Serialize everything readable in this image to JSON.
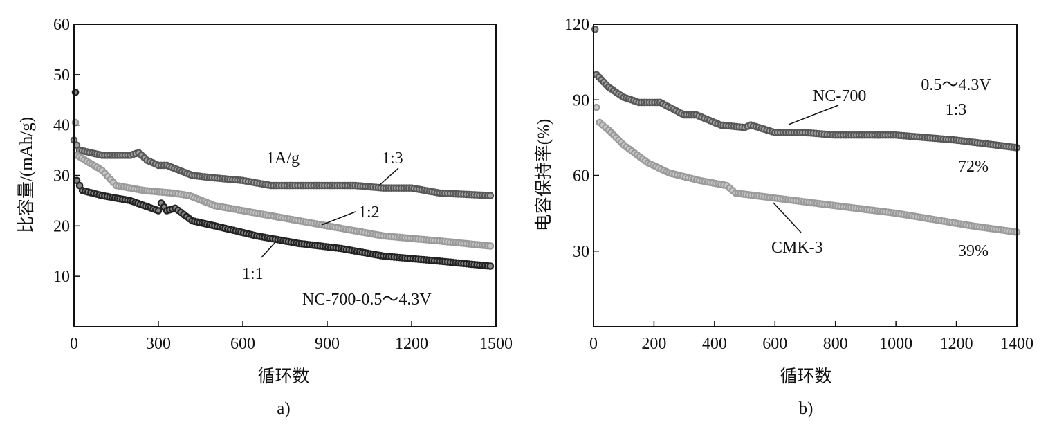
{
  "chart_data": [
    {
      "type": "scatter",
      "panel": "a)",
      "xlabel": "循环数",
      "ylabel": "比容量/(mAh/g)",
      "xlim": [
        0,
        1500
      ],
      "ylim": [
        0,
        60
      ],
      "xticks": [
        0,
        300,
        600,
        900,
        1200,
        1500
      ],
      "yticks": [
        10,
        20,
        30,
        40,
        50,
        60
      ],
      "annotations": {
        "rate": "1A/g",
        "condition": "NC-700-0.5～4.3V"
      },
      "series": [
        {
          "name": "1:3",
          "color": "#575757",
          "x": [
            0,
            20,
            100,
            200,
            230,
            260,
            300,
            330,
            420,
            500,
            600,
            650,
            700,
            900,
            1000,
            1100,
            1200,
            1300,
            1480
          ],
          "y": [
            37,
            35,
            34,
            34,
            34.5,
            33,
            32,
            32,
            30,
            29.5,
            29,
            28.5,
            28,
            28,
            28,
            27.5,
            27.5,
            26.5,
            26
          ]
        },
        {
          "name": "1:2",
          "color": "#9a9a9a",
          "x": [
            5,
            10,
            100,
            150,
            250,
            350,
            410,
            500,
            700,
            900,
            1100,
            1300,
            1480
          ],
          "y": [
            40.5,
            34,
            31,
            28,
            27,
            26.5,
            26,
            24,
            22,
            20,
            18,
            17,
            16
          ]
        },
        {
          "name": "1:1",
          "color": "#222222",
          "x": [
            5,
            10,
            30,
            100,
            200,
            300,
            310,
            330,
            360,
            420,
            500,
            650,
            800,
            950,
            1100,
            1300,
            1480
          ],
          "y": [
            46.5,
            29,
            27,
            26,
            25,
            23,
            24.5,
            23,
            23.5,
            21,
            20,
            18,
            16.5,
            15.5,
            14,
            13,
            12
          ]
        }
      ]
    },
    {
      "type": "scatter",
      "panel": "b)",
      "xlabel": "循环数",
      "ylabel": "电容保持率(%)",
      "xlim": [
        0,
        1400
      ],
      "ylim": [
        0,
        120
      ],
      "xticks": [
        0,
        200,
        400,
        600,
        800,
        1000,
        1200,
        1400
      ],
      "yticks": [
        30,
        60,
        90,
        120
      ],
      "annotations": {
        "voltage": "0.5～4.3V",
        "ratio": "1:3",
        "nc_retention": "72%",
        "cmk_retention": "39%"
      },
      "series": [
        {
          "name": "NC-700",
          "color": "#575757",
          "x": [
            5,
            10,
            50,
            100,
            150,
            220,
            300,
            340,
            420,
            500,
            520,
            600,
            700,
            800,
            1000,
            1200,
            1400
          ],
          "y": [
            118,
            100,
            95,
            91,
            89,
            89,
            84,
            84,
            80,
            79,
            80,
            77,
            77,
            76,
            76,
            74,
            71
          ]
        },
        {
          "name": "CMK-3",
          "color": "#9a9a9a",
          "x": [
            10,
            20,
            50,
            100,
            180,
            250,
            350,
            440,
            470,
            600,
            800,
            1000,
            1150,
            1250,
            1400
          ],
          "y": [
            87,
            81,
            78,
            72,
            65,
            61,
            58,
            56,
            53,
            51,
            48,
            45,
            42,
            40,
            37.5
          ]
        }
      ]
    }
  ]
}
